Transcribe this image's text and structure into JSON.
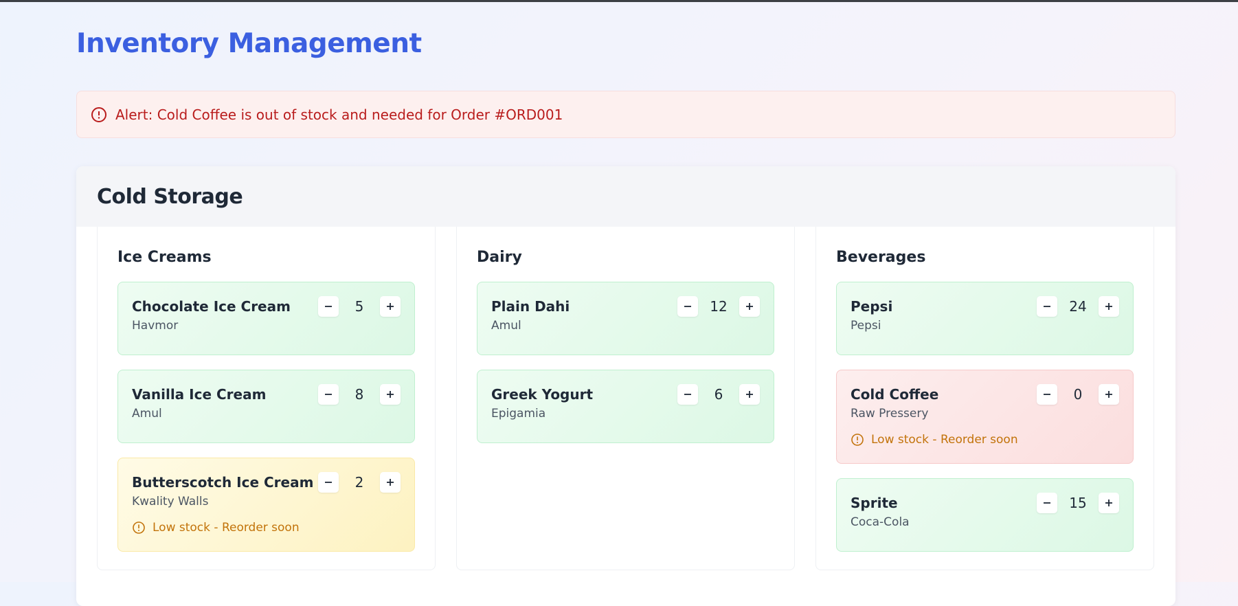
{
  "header": {
    "title": "Inventory Management"
  },
  "alert": {
    "text": "Alert: Cold Coffee is out of stock and needed for Order #ORD001"
  },
  "section": {
    "title": "Cold Storage",
    "groups": [
      {
        "title": "Ice Creams",
        "items": [
          {
            "name": "Chocolate Ice Cream",
            "brand": "Havmor",
            "quantity": 5
          },
          {
            "name": "Vanilla Ice Cream",
            "brand": "Amul",
            "quantity": 8
          },
          {
            "name": "Butterscotch Ice Cream",
            "brand": "Kwality Walls",
            "quantity": 2,
            "warning": "Low stock - Reorder soon"
          }
        ]
      },
      {
        "title": "Dairy",
        "items": [
          {
            "name": "Plain Dahi",
            "brand": "Amul",
            "quantity": 12
          },
          {
            "name": "Greek Yogurt",
            "brand": "Epigamia",
            "quantity": 6
          }
        ]
      },
      {
        "title": "Beverages",
        "items": [
          {
            "name": "Pepsi",
            "brand": "Pepsi",
            "quantity": 24
          },
          {
            "name": "Cold Coffee",
            "brand": "Raw Pressery",
            "quantity": 0,
            "warning": "Low stock - Reorder soon"
          },
          {
            "name": "Sprite",
            "brand": "Coca-Cola",
            "quantity": 15
          }
        ]
      }
    ]
  }
}
